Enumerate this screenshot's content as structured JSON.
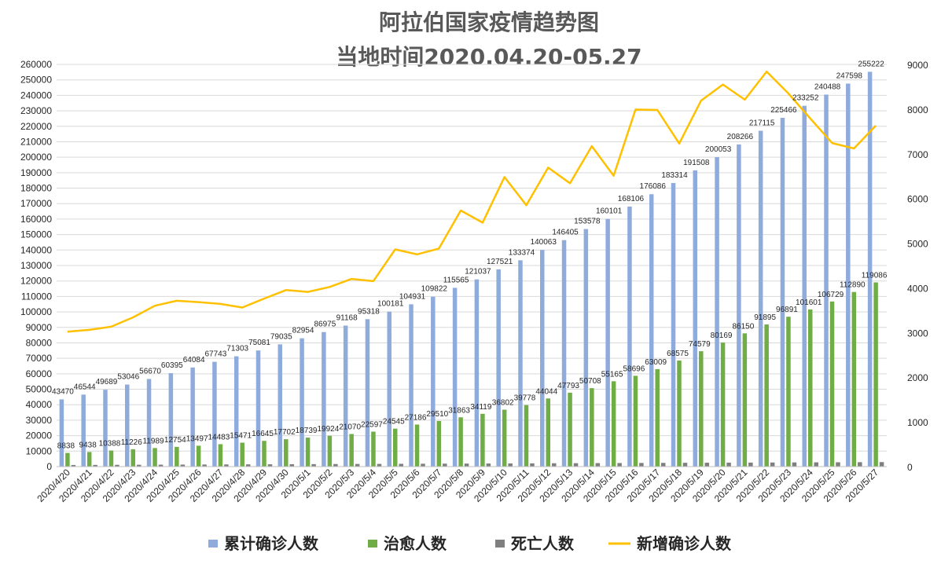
{
  "chart_data": {
    "type": "bar",
    "title": "阿拉伯国家疫情趋势图",
    "subtitle": "当地时间2020.04.20-05.27",
    "categories": [
      "2020/4/20",
      "2020/4/21",
      "2020/4/22",
      "2020/4/23",
      "2020/4/24",
      "2020/4/25",
      "2020/4/26",
      "2020/4/27",
      "2020/4/28",
      "2020/4/29",
      "2020/4/30",
      "2020/5/1",
      "2020/5/2",
      "2020/5/3",
      "2020/5/4",
      "2020/5/5",
      "2020/5/6",
      "2020/5/7",
      "2020/5/8",
      "2020/5/9",
      "2020/5/10",
      "2020/5/11",
      "2020/5/12",
      "2020/5/13",
      "2020/5/14",
      "2020/5/15",
      "2020/5/16",
      "2020/5/17",
      "2020/5/18",
      "2020/5/19",
      "2020/5/20",
      "2020/5/21",
      "2020/5/22",
      "2020/5/23",
      "2020/5/24",
      "2020/5/25",
      "2020/5/26",
      "2020/5/27"
    ],
    "y_left": {
      "min": 0,
      "max": 260000,
      "step": 10000
    },
    "y_right": {
      "min": 0,
      "max": 9000,
      "step": 1000
    },
    "grid": true,
    "legend_position": "bottom",
    "series": [
      {
        "name": "累计确诊人数",
        "kind": "bar",
        "axis": "left",
        "color": "#8fabdc",
        "labeled": true,
        "values": [
          43470,
          46544,
          49689,
          53046,
          56670,
          60395,
          64084,
          67743,
          71303,
          75081,
          79035,
          82954,
          86975,
          91168,
          95318,
          100181,
          104931,
          109822,
          115565,
          121037,
          127521,
          133374,
          140063,
          146405,
          153578,
          160101,
          168106,
          176086,
          183314,
          191508,
          200053,
          208266,
          217115,
          225466,
          233252,
          240488,
          247598,
          255222
        ]
      },
      {
        "name": "治愈人数",
        "kind": "bar",
        "axis": "left",
        "color": "#70ad47",
        "labeled": true,
        "values": [
          8838,
          9438,
          10388,
          11226,
          11989,
          12754,
          13497,
          14483,
          15471,
          16645,
          17702,
          18739,
          19924,
          21070,
          22597,
          24545,
          27186,
          29510,
          31863,
          34119,
          36802,
          39778,
          44044,
          47793,
          50708,
          55165,
          58696,
          63009,
          68575,
          74579,
          80169,
          86150,
          91895,
          96891,
          101601,
          106729,
          112890,
          119086
        ]
      },
      {
        "name": "死亡人数",
        "kind": "bar",
        "axis": "left",
        "color": "#7f7f7f",
        "labeled": false,
        "values": [
          1050,
          1100,
          1150,
          1200,
          1250,
          1300,
          1350,
          1400,
          1450,
          1500,
          1550,
          1600,
          1650,
          1700,
          1750,
          1800,
          1850,
          1900,
          1950,
          2000,
          2050,
          2100,
          2150,
          2200,
          2250,
          2300,
          2350,
          2400,
          2450,
          2500,
          2550,
          2600,
          2650,
          2700,
          2750,
          2800,
          2850,
          2900
        ]
      },
      {
        "name": "新增确诊人数",
        "kind": "line",
        "axis": "right",
        "color": "#ffc000",
        "labeled": false,
        "values": [
          3020,
          3060,
          3130,
          3340,
          3600,
          3710,
          3680,
          3640,
          3560,
          3760,
          3950,
          3910,
          4020,
          4200,
          4150,
          4860,
          4750,
          4880,
          5730,
          5460,
          6480,
          5850,
          6690,
          6340,
          7170,
          6510,
          7990,
          7980,
          7230,
          8190,
          8550,
          8210,
          8840,
          8350,
          7790,
          7240,
          7120,
          7630
        ]
      }
    ]
  }
}
